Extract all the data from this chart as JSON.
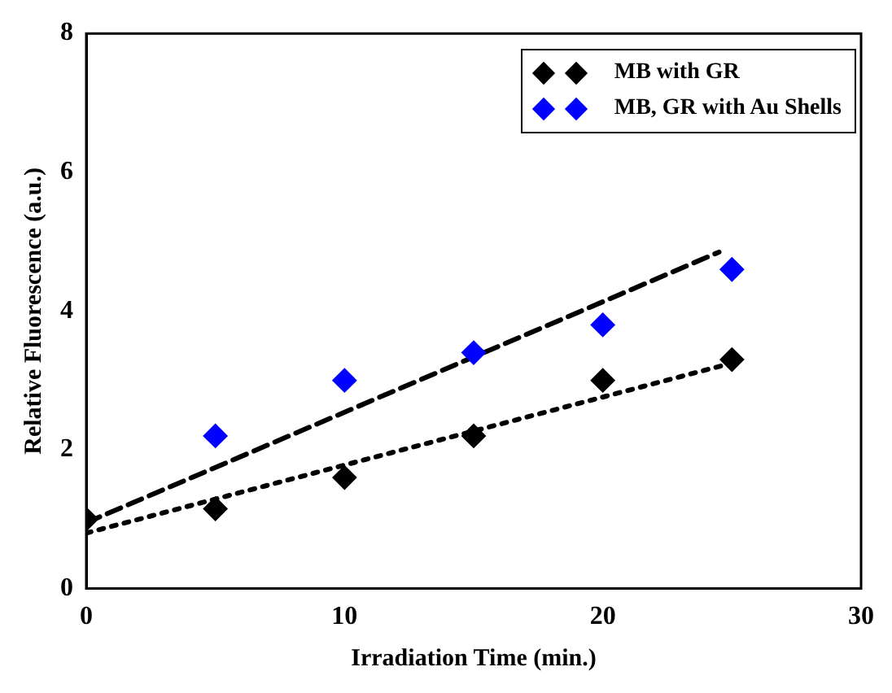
{
  "chart_data": {
    "type": "scatter",
    "xlabel": "Irradiation Time (min.)",
    "ylabel": "Relative Fluorescence (a.u.)",
    "x": [
      0,
      5,
      10,
      15,
      20,
      25
    ],
    "series": [
      {
        "name": "MB with GR",
        "color": "#000000",
        "values": [
          1.0,
          1.15,
          1.6,
          2.2,
          3.0,
          3.3
        ]
      },
      {
        "name": "MB, GR with Au Shells",
        "color": "#0000ff",
        "values": [
          null,
          2.2,
          3.0,
          3.4,
          3.8,
          4.6
        ]
      },
      {
        "type": "line",
        "color": "#000000",
        "x": [
          0,
          24.5
        ],
        "values": [
          0.95,
          4.85
        ],
        "line_style": "dashed",
        "marker": "none"
      },
      {
        "type": "line",
        "color": "#000000",
        "x": [
          0,
          25
        ],
        "values": [
          0.8,
          3.25
        ],
        "line_style": "dotted",
        "marker": "none"
      }
    ],
    "xlim": [
      0,
      30
    ],
    "xticks": [
      0,
      10,
      20,
      30
    ],
    "ylim": [
      0,
      8
    ],
    "yticks": [
      0,
      2,
      4,
      6,
      8
    ],
    "marker": "diamond",
    "grid": false,
    "legend": "top right"
  }
}
